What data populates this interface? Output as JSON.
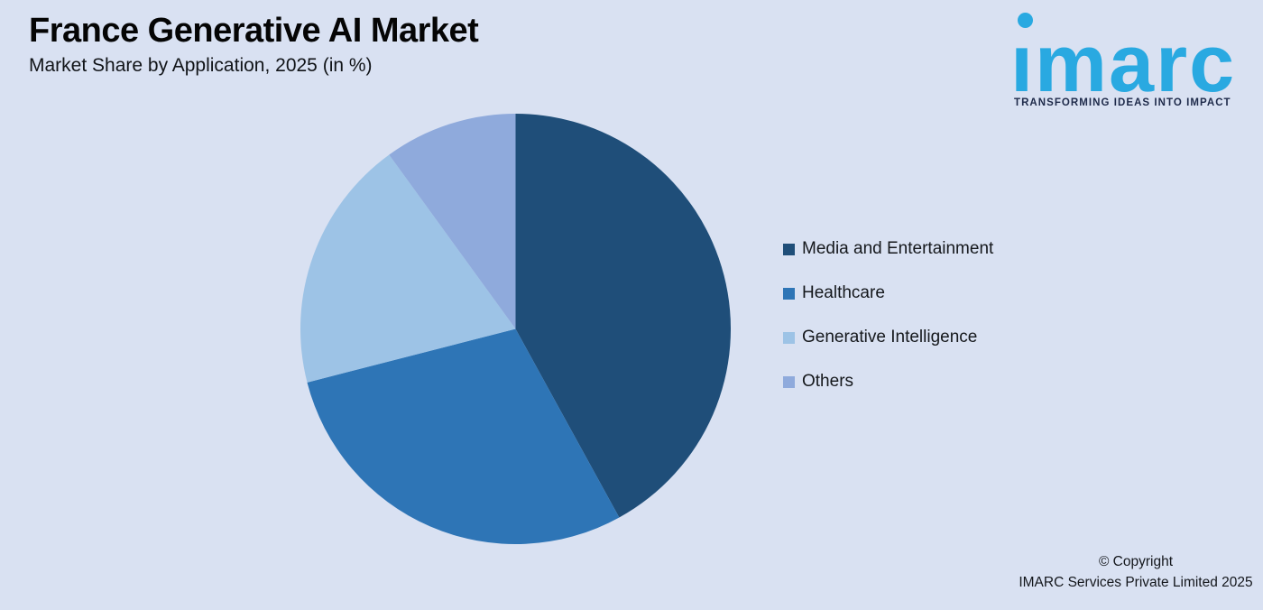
{
  "page": {
    "background_color": "#D9E1F2"
  },
  "header": {
    "title": "France Generative AI Market",
    "subtitle": "Market Share by Application, 2025 (in %)"
  },
  "logo": {
    "wordmark": "ımarc",
    "tagline": "TRANSFORMING IDEAS INTO IMPACT",
    "brand_color": "#29A9E1",
    "tagline_color": "#1E2A4A"
  },
  "chart_data": {
    "type": "pie",
    "title": "France Generative AI Market",
    "subtitle": "Market Share by Application, 2025 (in %)",
    "categories": [
      "Media and Entertainment",
      "Healthcare",
      "Generative Intelligence",
      "Others"
    ],
    "values": [
      42,
      29,
      19,
      10
    ],
    "unit": "%",
    "colors": [
      "#1F4E79",
      "#2E75B6",
      "#9DC3E6",
      "#8FAADC"
    ],
    "start_angle_deg": 0,
    "direction": "clockwise",
    "legend_position": "right",
    "data_labels": false
  },
  "legend": {
    "items": [
      {
        "label": "Media and Entertainment",
        "color": "#1F4E79"
      },
      {
        "label": "Healthcare",
        "color": "#2E75B6"
      },
      {
        "label": "Generative Intelligence",
        "color": "#9DC3E6"
      },
      {
        "label": "Others",
        "color": "#8FAADC"
      }
    ]
  },
  "footer": {
    "line1": "© Copyright",
    "line2": "IMARC Services Private Limited 2025"
  }
}
